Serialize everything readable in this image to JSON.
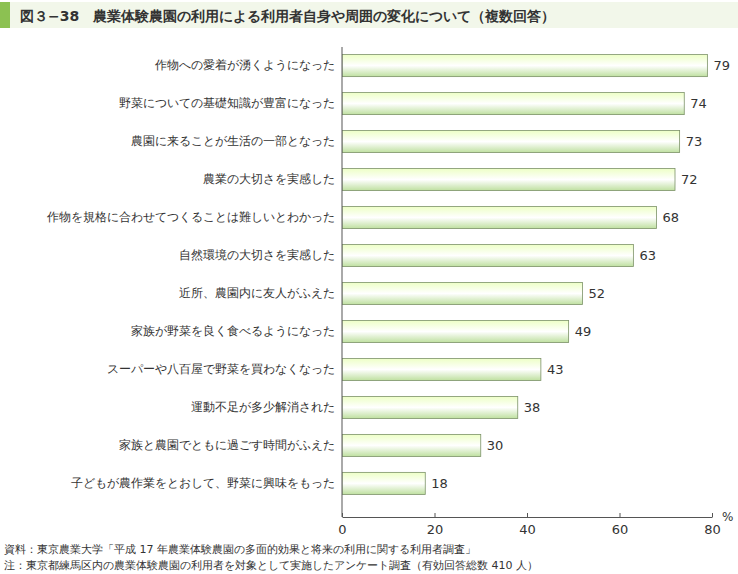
{
  "chart_data": {
    "type": "bar",
    "orientation": "horizontal",
    "title": "図３−38　農業体験農園の利用による利用者自身や周囲の変化について（複数回答）",
    "categories": [
      "作物への愛着が湧くようになった",
      "野菜についての基礎知識が豊富になった",
      "農園に来ることが生活の一部となった",
      "農業の大切さを実感した",
      "作物を規格に合わせてつくることは難しいとわかった",
      "自然環境の大切さを実感した",
      "近所、農園内に友人がふえた",
      "家族が野菜を良く食べるようになった",
      "スーパーや八百屋で野菜を買わなくなった",
      "運動不足が多少解消された",
      "家族と農園でともに過ごす時間がふえた",
      "子どもが農作業をとおして、野菜に興味をもった"
    ],
    "values": [
      79,
      74,
      73,
      72,
      68,
      63,
      52,
      49,
      43,
      38,
      30,
      18
    ],
    "color": "#bfe0a0",
    "xlabel": "%",
    "xlim": [
      0,
      80
    ],
    "xticks": [
      0,
      20,
      40,
      60,
      80
    ],
    "grid": false,
    "data_labels": true,
    "annotations": [
      "資料：東京農業大学「平成 17 年農業体験農園の多面的効果と将来の利用に関する利用者調査」",
      "注：東京都練馬区内の農業体験農園の利用者を対象として実施したアンケート調査（有効回答総数 410 人）"
    ]
  }
}
